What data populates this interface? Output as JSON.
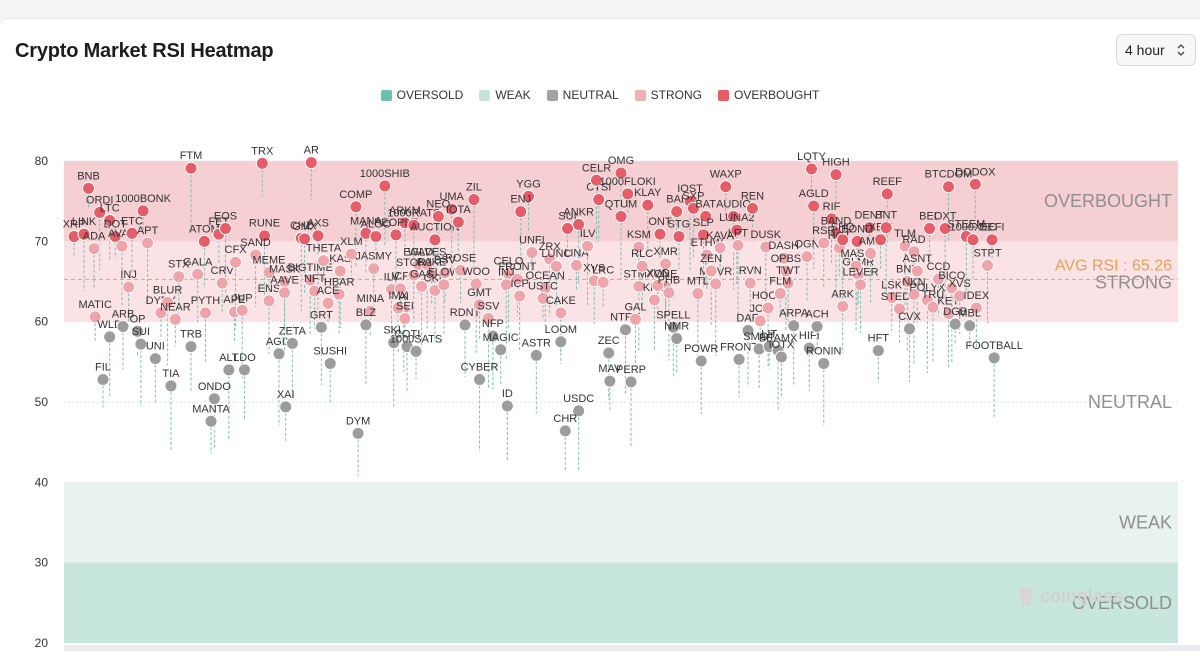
{
  "title": "Crypto Market RSI Heatmap",
  "timeframe": {
    "selected": "4 hour"
  },
  "legend": [
    {
      "label": "OVERSOLD",
      "color": "#6dbfae"
    },
    {
      "label": "WEAK",
      "color": "#c6e4dc"
    },
    {
      "label": "NEUTRAL",
      "color": "#a3a3a3"
    },
    {
      "label": "STRONG",
      "color": "#f3b0b4"
    },
    {
      "label": "OVERBOUGHT",
      "color": "#e85c68"
    }
  ],
  "watermark": "coinglass",
  "chart_data": {
    "type": "scatter",
    "title": "Crypto Market RSI Heatmap",
    "ylim": [
      20,
      80
    ],
    "yticks": [
      20,
      30,
      40,
      50,
      60,
      70,
      80
    ],
    "zones": [
      {
        "label": "OVERBOUGHT",
        "range": [
          70,
          80
        ],
        "color": "#f5cfd2"
      },
      {
        "label": "STRONG",
        "range": [
          60,
          70
        ],
        "color": "#fbe3e5"
      },
      {
        "label": "NEUTRAL",
        "range": [
          40,
          60
        ],
        "color": "#ffffff"
      },
      {
        "label": "WEAK",
        "range": [
          30,
          40
        ],
        "color": "#e8f2ef"
      },
      {
        "label": "OVERSOLD",
        "range": [
          20,
          30
        ],
        "color": "#c7e6de"
      }
    ],
    "avg_rsi": 65.26,
    "avg_label": "AVG RSI : 65.26",
    "points": [
      {
        "name": "XRP",
        "x": 0.009,
        "rsi": 70.6
      },
      {
        "name": "LINK",
        "x": 0.018,
        "rsi": 70.9
      },
      {
        "name": "ADA",
        "x": 0.027,
        "rsi": 69.1
      },
      {
        "name": "BNB",
        "x": 0.022,
        "rsi": 76.6
      },
      {
        "name": "ORDI",
        "x": 0.032,
        "rsi": 73.6
      },
      {
        "name": "LTC",
        "x": 0.041,
        "rsi": 72.6
      },
      {
        "name": "DOT",
        "x": 0.046,
        "rsi": 70.6
      },
      {
        "name": "AVAX",
        "x": 0.052,
        "rsi": 69.4
      },
      {
        "name": "ETC",
        "x": 0.061,
        "rsi": 71.0
      },
      {
        "name": "1000BONK",
        "x": 0.071,
        "rsi": 73.8
      },
      {
        "name": "APT",
        "x": 0.075,
        "rsi": 69.8
      },
      {
        "name": "INJ",
        "x": 0.058,
        "rsi": 64.3
      },
      {
        "name": "MATIC",
        "x": 0.028,
        "rsi": 60.6
      },
      {
        "name": "WLD",
        "x": 0.041,
        "rsi": 58.1
      },
      {
        "name": "ARB",
        "x": 0.053,
        "rsi": 59.4
      },
      {
        "name": "OP",
        "x": 0.066,
        "rsi": 58.8
      },
      {
        "name": "SUI",
        "x": 0.069,
        "rsi": 57.2
      },
      {
        "name": "UNI",
        "x": 0.082,
        "rsi": 55.4
      },
      {
        "name": "DYDX",
        "x": 0.087,
        "rsi": 61.1
      },
      {
        "name": "BLUR",
        "x": 0.093,
        "rsi": 62.4
      },
      {
        "name": "STX",
        "x": 0.103,
        "rsi": 65.6
      },
      {
        "name": "NEAR",
        "x": 0.1,
        "rsi": 60.3
      },
      {
        "name": "TIA",
        "x": 0.096,
        "rsi": 52.0
      },
      {
        "name": "TRB",
        "x": 0.114,
        "rsi": 56.9
      },
      {
        "name": "FIL",
        "x": 0.035,
        "rsi": 52.8
      },
      {
        "name": "FTM",
        "x": 0.114,
        "rsi": 79.1
      },
      {
        "name": "ATOM",
        "x": 0.126,
        "rsi": 70.0
      },
      {
        "name": "FET",
        "x": 0.139,
        "rsi": 70.9
      },
      {
        "name": "EOS",
        "x": 0.145,
        "rsi": 71.6
      },
      {
        "name": "GALA",
        "x": 0.12,
        "rsi": 65.9
      },
      {
        "name": "CRV",
        "x": 0.142,
        "rsi": 64.8
      },
      {
        "name": "CFX",
        "x": 0.154,
        "rsi": 67.4
      },
      {
        "name": "PYTH",
        "x": 0.127,
        "rsi": 61.1
      },
      {
        "name": "APE",
        "x": 0.153,
        "rsi": 61.2
      },
      {
        "name": "JUP",
        "x": 0.16,
        "rsi": 61.4
      },
      {
        "name": "ONDO",
        "x": 0.135,
        "rsi": 50.4
      },
      {
        "name": "MANTA",
        "x": 0.132,
        "rsi": 47.6
      },
      {
        "name": "ALT",
        "x": 0.148,
        "rsi": 54.0
      },
      {
        "name": "LDO",
        "x": 0.162,
        "rsi": 54.0
      },
      {
        "name": "TRX",
        "x": 0.178,
        "rsi": 79.7
      },
      {
        "name": "RUNE",
        "x": 0.18,
        "rsi": 70.7
      },
      {
        "name": "SAND",
        "x": 0.172,
        "rsi": 68.3
      },
      {
        "name": "MEME",
        "x": 0.184,
        "rsi": 66.1
      },
      {
        "name": "MASK",
        "x": 0.198,
        "rsi": 65.0
      },
      {
        "name": "ENS",
        "x": 0.184,
        "rsi": 62.6
      },
      {
        "name": "AAVE",
        "x": 0.198,
        "rsi": 63.6
      },
      {
        "name": "AGIX",
        "x": 0.193,
        "rsi": 56.0
      },
      {
        "name": "ZETA",
        "x": 0.205,
        "rsi": 57.3
      },
      {
        "name": "XAI",
        "x": 0.199,
        "rsi": 49.4
      },
      {
        "name": "CHZ",
        "x": 0.213,
        "rsi": 70.4
      },
      {
        "name": "GMX",
        "x": 0.216,
        "rsi": 70.3
      },
      {
        "name": "AR",
        "x": 0.222,
        "rsi": 79.8
      },
      {
        "name": "AXS",
        "x": 0.228,
        "rsi": 70.7
      },
      {
        "name": "BIGTIME",
        "x": 0.221,
        "rsi": 65.2
      },
      {
        "name": "NFT",
        "x": 0.225,
        "rsi": 63.8
      },
      {
        "name": "THETA",
        "x": 0.233,
        "rsi": 67.6
      },
      {
        "name": "KAS",
        "x": 0.248,
        "rsi": 66.3
      },
      {
        "name": "HBAR",
        "x": 0.247,
        "rsi": 63.4
      },
      {
        "name": "ACE",
        "x": 0.237,
        "rsi": 62.3
      },
      {
        "name": "GRT",
        "x": 0.231,
        "rsi": 59.3
      },
      {
        "name": "SUSHI",
        "x": 0.239,
        "rsi": 54.8
      },
      {
        "name": "XLM",
        "x": 0.258,
        "rsi": 68.4
      },
      {
        "name": "COMP",
        "x": 0.262,
        "rsi": 74.3
      },
      {
        "name": "MANA",
        "x": 0.271,
        "rsi": 71.0
      },
      {
        "name": "ALGO",
        "x": 0.28,
        "rsi": 70.6
      },
      {
        "name": "1000SHIB",
        "x": 0.288,
        "rsi": 76.9
      },
      {
        "name": "JASMY",
        "x": 0.278,
        "rsi": 66.6
      },
      {
        "name": "MINA",
        "x": 0.275,
        "rsi": 61.3
      },
      {
        "name": "BLZ",
        "x": 0.271,
        "rsi": 59.6
      },
      {
        "name": "DYM",
        "x": 0.264,
        "rsi": 46.1
      },
      {
        "name": "ARKM",
        "x": 0.306,
        "rsi": 72.3
      },
      {
        "name": "PEOPLE",
        "x": 0.298,
        "rsi": 70.8
      },
      {
        "name": "ILV",
        "x": 0.294,
        "rsi": 64.0
      },
      {
        "name": "ICP",
        "x": 0.302,
        "rsi": 64.1
      },
      {
        "name": "AI",
        "x": 0.305,
        "rsi": 61.6
      },
      {
        "name": "IMX",
        "x": 0.3,
        "rsi": 61.7
      },
      {
        "name": "SEI",
        "x": 0.306,
        "rsi": 60.4
      },
      {
        "name": "SKL",
        "x": 0.296,
        "rsi": 57.4
      },
      {
        "name": "COTI",
        "x": 0.308,
        "rsi": 56.9
      },
      {
        "name": "1000SATS",
        "x": 0.316,
        "rsi": 56.3
      },
      {
        "name": "1000RATS",
        "x": 0.314,
        "rsi": 72.0
      },
      {
        "name": "AUCTION",
        "x": 0.333,
        "rsi": 70.2
      },
      {
        "name": "EGLD",
        "x": 0.318,
        "rsi": 67.1
      },
      {
        "name": "WAVES",
        "x": 0.326,
        "rsi": 67.1
      },
      {
        "name": "STORJ",
        "x": 0.314,
        "rsi": 65.8
      },
      {
        "name": "BAKE",
        "x": 0.33,
        "rsi": 65.9
      },
      {
        "name": "GAS",
        "x": 0.321,
        "rsi": 64.4
      },
      {
        "name": "CKB",
        "x": 0.333,
        "rsi": 63.9
      },
      {
        "name": "BSV",
        "x": 0.342,
        "rsi": 66.1
      },
      {
        "name": "UMA",
        "x": 0.348,
        "rsi": 74.0
      },
      {
        "name": "NEO",
        "x": 0.336,
        "rsi": 73.1
      },
      {
        "name": "IOTA",
        "x": 0.354,
        "rsi": 72.4
      },
      {
        "name": "ZIL",
        "x": 0.368,
        "rsi": 75.2
      },
      {
        "name": "FLOW",
        "x": 0.341,
        "rsi": 64.6
      },
      {
        "name": "ROSE",
        "x": 0.356,
        "rsi": 66.4
      },
      {
        "name": "WOO",
        "x": 0.37,
        "rsi": 64.7
      },
      {
        "name": "RDNT",
        "x": 0.36,
        "rsi": 59.6
      },
      {
        "name": "GMT",
        "x": 0.373,
        "rsi": 62.1
      },
      {
        "name": "SSV",
        "x": 0.381,
        "rsi": 60.4
      },
      {
        "name": "NFP",
        "x": 0.385,
        "rsi": 58.2
      },
      {
        "name": "MAGIC",
        "x": 0.392,
        "rsi": 56.5
      },
      {
        "name": "CYBER",
        "x": 0.373,
        "rsi": 52.8
      },
      {
        "name": "ID",
        "x": 0.398,
        "rsi": 49.5
      },
      {
        "name": "YGG",
        "x": 0.417,
        "rsi": 75.6
      },
      {
        "name": "ENJ",
        "x": 0.41,
        "rsi": 73.7
      },
      {
        "name": "CELO",
        "x": 0.399,
        "rsi": 66.0
      },
      {
        "name": "FRONT",
        "x": 0.407,
        "rsi": 65.3
      },
      {
        "name": "INJ",
        "x": 0.397,
        "rsi": 64.6
      },
      {
        "name": "ICP",
        "x": 0.409,
        "rsi": 63.2
      },
      {
        "name": "OCEAN",
        "x": 0.432,
        "rsi": 64.2
      },
      {
        "name": "UNFI",
        "x": 0.42,
        "rsi": 68.6
      },
      {
        "name": "ZRX",
        "x": 0.436,
        "rsi": 67.8
      },
      {
        "name": "LUNC",
        "x": 0.442,
        "rsi": 66.9
      },
      {
        "name": "USTC",
        "x": 0.43,
        "rsi": 62.9
      },
      {
        "name": "ASTR",
        "x": 0.424,
        "rsi": 55.8
      },
      {
        "name": "CAKE",
        "x": 0.446,
        "rsi": 61.1
      },
      {
        "name": "LOOM",
        "x": 0.446,
        "rsi": 57.5
      },
      {
        "name": "USDC",
        "x": 0.462,
        "rsi": 48.9
      },
      {
        "name": "CHR",
        "x": 0.45,
        "rsi": 46.4
      },
      {
        "name": "SUI",
        "x": 0.452,
        "rsi": 71.6
      },
      {
        "name": "ANKR",
        "x": 0.462,
        "rsi": 72.1
      },
      {
        "name": "CTSI",
        "x": 0.48,
        "rsi": 75.2
      },
      {
        "name": "LINA",
        "x": 0.46,
        "rsi": 67.0
      },
      {
        "name": "ILV",
        "x": 0.47,
        "rsi": 69.4
      },
      {
        "name": "XVS",
        "x": 0.476,
        "rsi": 65.1
      },
      {
        "name": "LRC",
        "x": 0.484,
        "rsi": 64.9
      },
      {
        "name": "CELR",
        "x": 0.478,
        "rsi": 77.6
      },
      {
        "name": "OMG",
        "x": 0.5,
        "rsi": 78.5
      },
      {
        "name": "1000FLOKI",
        "x": 0.506,
        "rsi": 75.9
      },
      {
        "name": "QTUM",
        "x": 0.5,
        "rsi": 73.1
      },
      {
        "name": "KLAY",
        "x": 0.524,
        "rsi": 74.5
      },
      {
        "name": "KSM",
        "x": 0.516,
        "rsi": 69.3
      },
      {
        "name": "STMX",
        "x": 0.516,
        "rsi": 64.4
      },
      {
        "name": "RLC",
        "x": 0.519,
        "rsi": 66.9
      },
      {
        "name": "ONE",
        "x": 0.54,
        "rsi": 64.4
      },
      {
        "name": "NTRN",
        "x": 0.504,
        "rsi": 59.0
      },
      {
        "name": "ZEC",
        "x": 0.489,
        "rsi": 56.1
      },
      {
        "name": "MAV",
        "x": 0.49,
        "rsi": 52.6
      },
      {
        "name": "PERP",
        "x": 0.509,
        "rsi": 52.5
      },
      {
        "name": "GAL",
        "x": 0.513,
        "rsi": 60.3
      },
      {
        "name": "ONT",
        "x": 0.535,
        "rsi": 70.9
      },
      {
        "name": "XMR",
        "x": 0.54,
        "rsi": 67.2
      },
      {
        "name": "KNC",
        "x": 0.53,
        "rsi": 62.7
      },
      {
        "name": "XVG",
        "x": 0.533,
        "rsi": 64.5
      },
      {
        "name": "PHB",
        "x": 0.543,
        "rsi": 63.6
      },
      {
        "name": "SPELL",
        "x": 0.547,
        "rsi": 59.3
      },
      {
        "name": "BAL",
        "x": 0.55,
        "rsi": 73.7
      },
      {
        "name": "IOST",
        "x": 0.562,
        "rsi": 75.0
      },
      {
        "name": "SXP",
        "x": 0.565,
        "rsi": 74.1
      },
      {
        "name": "STG",
        "x": 0.552,
        "rsi": 70.6
      },
      {
        "name": "BAT",
        "x": 0.576,
        "rsi": 73.1
      },
      {
        "name": "SLP",
        "x": 0.574,
        "rsi": 70.8
      },
      {
        "name": "NMR",
        "x": 0.55,
        "rsi": 57.9
      },
      {
        "name": "MTL",
        "x": 0.569,
        "rsi": 63.5
      },
      {
        "name": "POWR",
        "x": 0.572,
        "rsi": 55.1
      },
      {
        "name": "ETHW",
        "x": 0.577,
        "rsi": 68.3
      },
      {
        "name": "MOVR",
        "x": 0.585,
        "rsi": 64.7
      },
      {
        "name": "ZEN",
        "x": 0.581,
        "rsi": 66.3
      },
      {
        "name": "WAXP",
        "x": 0.594,
        "rsi": 76.8
      },
      {
        "name": "AUDIO",
        "x": 0.601,
        "rsi": 73.1
      },
      {
        "name": "LUNA2",
        "x": 0.604,
        "rsi": 71.4
      },
      {
        "name": "KAVA",
        "x": 0.589,
        "rsi": 69.2
      },
      {
        "name": "LPT",
        "x": 0.605,
        "rsi": 69.5
      },
      {
        "name": "DAR",
        "x": 0.614,
        "rsi": 58.9
      },
      {
        "name": "FRONT",
        "x": 0.606,
        "rsi": 55.3
      },
      {
        "name": "REN",
        "x": 0.618,
        "rsi": 74.1
      },
      {
        "name": "DUSK",
        "x": 0.63,
        "rsi": 69.3
      },
      {
        "name": "RVN",
        "x": 0.616,
        "rsi": 64.8
      },
      {
        "name": "JOE",
        "x": 0.625,
        "rsi": 60.1
      },
      {
        "name": "HOOK",
        "x": 0.632,
        "rsi": 61.7
      },
      {
        "name": "SMOT",
        "x": 0.624,
        "rsi": 56.6
      },
      {
        "name": "LIT",
        "x": 0.633,
        "rsi": 56.9
      },
      {
        "name": "BEAMX",
        "x": 0.641,
        "rsi": 56.4
      },
      {
        "name": "IOTX",
        "x": 0.644,
        "rsi": 55.6
      },
      {
        "name": "DASH",
        "x": 0.646,
        "rsi": 67.9
      },
      {
        "name": "OPBS",
        "x": 0.648,
        "rsi": 66.3
      },
      {
        "name": "TWT",
        "x": 0.65,
        "rsi": 64.8
      },
      {
        "name": "FLM",
        "x": 0.643,
        "rsi": 63.5
      },
      {
        "name": "ARPA",
        "x": 0.655,
        "rsi": 59.5
      },
      {
        "name": "HIFI",
        "x": 0.669,
        "rsi": 56.7
      },
      {
        "name": "ACH",
        "x": 0.676,
        "rsi": 59.4
      },
      {
        "name": "RONIN",
        "x": 0.682,
        "rsi": 54.8
      },
      {
        "name": "OGN",
        "x": 0.667,
        "rsi": 68.1
      },
      {
        "name": "LQTY",
        "x": 0.671,
        "rsi": 79.0
      },
      {
        "name": "AGLD",
        "x": 0.673,
        "rsi": 74.4
      },
      {
        "name": "RIF",
        "x": 0.689,
        "rsi": 72.8
      },
      {
        "name": "HIGH",
        "x": 0.693,
        "rsi": 78.3
      },
      {
        "name": "BAND",
        "x": 0.693,
        "rsi": 71.0
      },
      {
        "name": "RSR",
        "x": 0.682,
        "rsi": 69.8
      },
      {
        "name": "HOT",
        "x": 0.696,
        "rsi": 69.2
      },
      {
        "name": "SHO",
        "x": 0.699,
        "rsi": 70.2
      },
      {
        "name": "ARK",
        "x": 0.699,
        "rsi": 61.9
      },
      {
        "name": "GLMR",
        "x": 0.713,
        "rsi": 65.9
      },
      {
        "name": "MASK",
        "x": 0.711,
        "rsi": 66.9
      },
      {
        "name": "LEVER",
        "x": 0.715,
        "rsi": 64.6
      },
      {
        "name": "DENT",
        "x": 0.723,
        "rsi": 71.7
      },
      {
        "name": "BOND",
        "x": 0.712,
        "rsi": 70.0
      },
      {
        "name": "AMP",
        "x": 0.724,
        "rsi": 68.5
      },
      {
        "name": "XEM",
        "x": 0.733,
        "rsi": 70.2
      },
      {
        "name": "BNT",
        "x": 0.738,
        "rsi": 71.7
      },
      {
        "name": "REEF",
        "x": 0.739,
        "rsi": 75.9
      },
      {
        "name": "HFT",
        "x": 0.731,
        "rsi": 56.4
      },
      {
        "name": "TLM",
        "x": 0.755,
        "rsi": 69.4
      },
      {
        "name": "RAD",
        "x": 0.763,
        "rsi": 68.7
      },
      {
        "name": "LSK",
        "x": 0.743,
        "rsi": 63.0
      },
      {
        "name": "BNX",
        "x": 0.757,
        "rsi": 65.0
      },
      {
        "name": "ASNT",
        "x": 0.766,
        "rsi": 66.3
      },
      {
        "name": "STEDU",
        "x": 0.75,
        "rsi": 61.6
      },
      {
        "name": "NKN",
        "x": 0.763,
        "rsi": 63.4
      },
      {
        "name": "CVX",
        "x": 0.759,
        "rsi": 59.1
      },
      {
        "name": "BEL",
        "x": 0.777,
        "rsi": 71.6
      },
      {
        "name": "OXT",
        "x": 0.791,
        "rsi": 71.6
      },
      {
        "name": "BTCDOM",
        "x": 0.794,
        "rsi": 76.8
      },
      {
        "name": "DODOX",
        "x": 0.818,
        "rsi": 77.1
      },
      {
        "name": "POLYX",
        "x": 0.775,
        "rsi": 62.7
      },
      {
        "name": "TRU",
        "x": 0.78,
        "rsi": 61.8
      },
      {
        "name": "CCD",
        "x": 0.785,
        "rsi": 65.3
      },
      {
        "name": "BICO",
        "x": 0.797,
        "rsi": 64.2
      },
      {
        "name": "KEY",
        "x": 0.794,
        "rsi": 61.0
      },
      {
        "name": "XVS",
        "x": 0.804,
        "rsi": 63.2
      },
      {
        "name": "DGB",
        "x": 0.8,
        "rsi": 59.7
      },
      {
        "name": "STEEM",
        "x": 0.81,
        "rsi": 70.6
      },
      {
        "name": "1000XEC",
        "x": 0.816,
        "rsi": 70.2
      },
      {
        "name": "DEFI",
        "x": 0.833,
        "rsi": 70.2
      },
      {
        "name": "STPT",
        "x": 0.829,
        "rsi": 67.0
      },
      {
        "name": "IDEX",
        "x": 0.819,
        "rsi": 61.7
      },
      {
        "name": "MBL",
        "x": 0.813,
        "rsi": 59.5
      },
      {
        "name": "FOOTBALL",
        "x": 0.835,
        "rsi": 55.5
      }
    ]
  }
}
